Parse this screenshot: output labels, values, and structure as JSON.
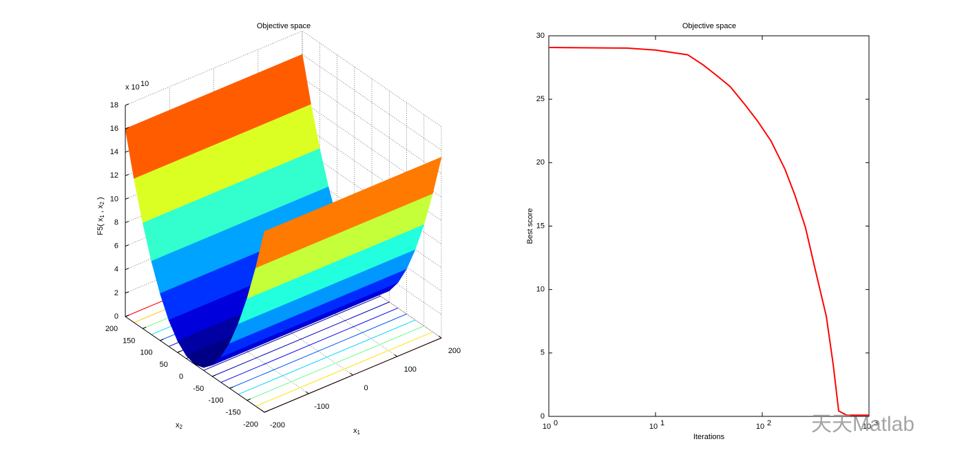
{
  "chart_data": [
    {
      "type": "surface",
      "title": "Objective space",
      "x1lim": [
        -200,
        200
      ],
      "x1ticks": [
        -200,
        -100,
        0,
        100,
        200
      ],
      "x2lim": [
        -200,
        200
      ],
      "x2ticks": [
        -200,
        -150,
        -100,
        -50,
        0,
        50,
        100,
        150,
        200
      ],
      "zlim": [
        0,
        18
      ],
      "zticks": [
        0,
        2,
        4,
        6,
        8,
        10,
        12,
        14,
        16,
        18
      ],
      "z_multiplier": "x 10",
      "z_multiplier_exponent": "10",
      "xlabel": [
        "x",
        "1"
      ],
      "ylabel": [
        "x",
        "2"
      ],
      "zlabel": [
        "F5( x",
        "1",
        " , x",
        "2",
        " )"
      ],
      "x2": [
        -200,
        -175,
        -150,
        -125,
        -100,
        -75,
        -50,
        -25,
        0,
        25,
        50,
        75,
        100,
        125,
        150,
        175,
        200
      ],
      "values": [
        15.4,
        11.8,
        8.66,
        6.02,
        3.85,
        2.17,
        0.96,
        0.24,
        0,
        0.25,
        1,
        2.25,
        4,
        6.25,
        9,
        12.25,
        16
      ],
      "colormap": "jet",
      "grid": true
    },
    {
      "type": "line",
      "title": "Objective space",
      "xlabel": "Iterations",
      "ylabel": "Best score",
      "xscale": "log",
      "xlim": [
        1,
        1000
      ],
      "xticks": [
        {
          "value": 1,
          "label": "10",
          "exponent": "0"
        },
        {
          "value": 10,
          "label": "10",
          "exponent": "1"
        },
        {
          "value": 100,
          "label": "10",
          "exponent": "2"
        },
        {
          "value": 1000,
          "label": "10",
          "exponent": "3"
        }
      ],
      "ylim": [
        0,
        30
      ],
      "yticks": [
        0,
        5,
        10,
        15,
        20,
        25,
        30
      ],
      "x": [
        1,
        5.4,
        10,
        20,
        28,
        37,
        50,
        67,
        90,
        121,
        163,
        203,
        254,
        317,
        398,
        462,
        520,
        618,
        1000
      ],
      "values": [
        29.08,
        29.03,
        28.87,
        28.5,
        27.7,
        26.9,
        26.0,
        24.7,
        23.3,
        21.7,
        19.5,
        17.4,
        14.9,
        11.4,
        7.9,
        4.1,
        0.43,
        0.1,
        0.1
      ],
      "color": "#ff0000",
      "watermark": "天天Matlab"
    }
  ]
}
